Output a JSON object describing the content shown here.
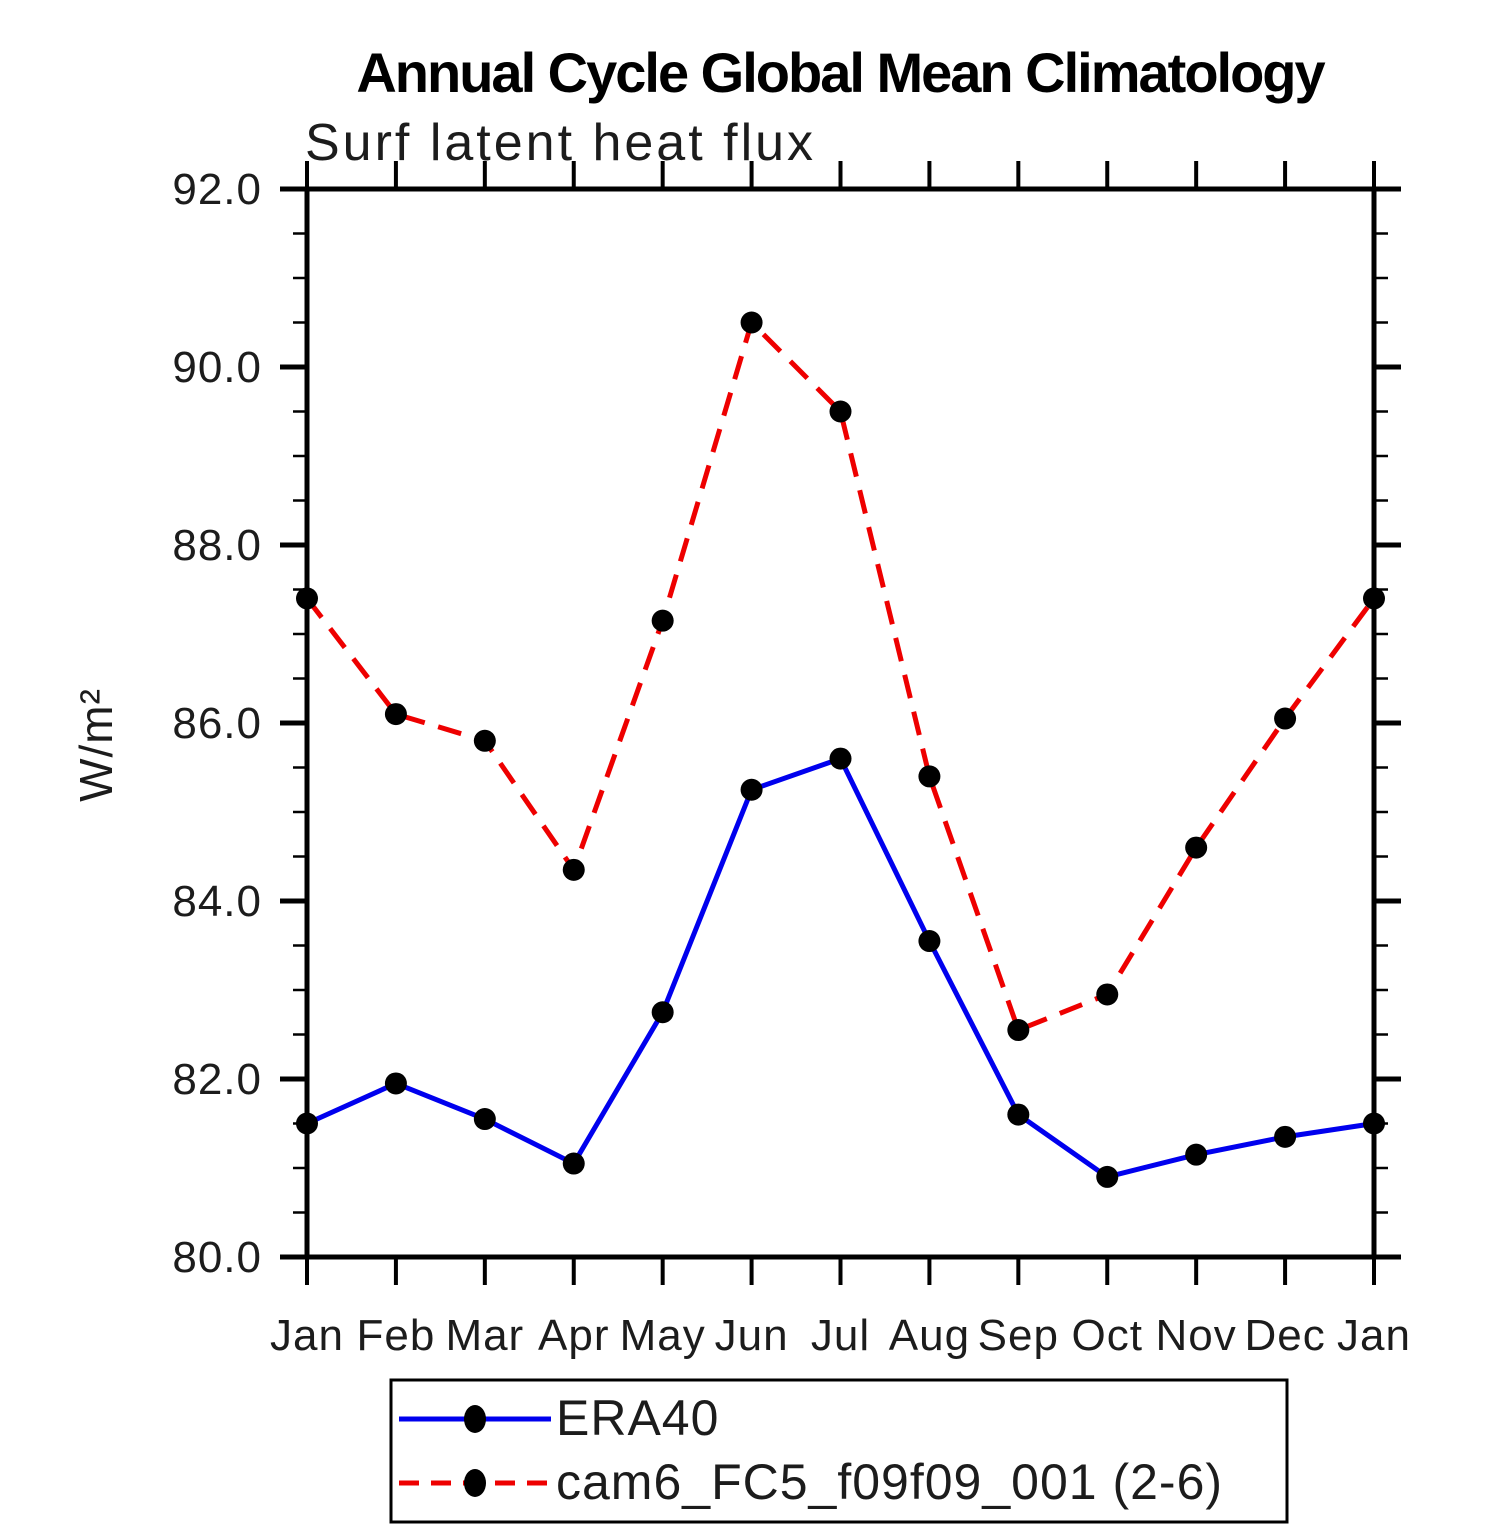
{
  "chart_data": {
    "type": "line",
    "title": "Annual Cycle Global Mean Climatology",
    "subtitle": "Surf latent heat flux",
    "ylabel": "W/m²",
    "xlabel": "",
    "categories": [
      "Jan",
      "Feb",
      "Mar",
      "Apr",
      "May",
      "Jun",
      "Jul",
      "Aug",
      "Sep",
      "Oct",
      "Nov",
      "Dec",
      "Jan"
    ],
    "ylim": [
      80.0,
      92.0
    ],
    "yticks": {
      "values": [
        80.0,
        82.0,
        84.0,
        86.0,
        88.0,
        90.0,
        92.0
      ],
      "labels": [
        "80.0",
        "82.0",
        "84.0",
        "86.0",
        "88.0",
        "90.0",
        "92.0"
      ],
      "minor_step": 0.5
    },
    "grid": false,
    "legend_position": "bottom",
    "series": [
      {
        "name": "ERA40",
        "color": "#0000ee",
        "line_style": "solid",
        "marker": "circle",
        "marker_color": "#000000",
        "values": [
          81.5,
          81.95,
          81.55,
          81.05,
          82.75,
          85.25,
          85.6,
          83.55,
          81.6,
          80.9,
          81.15,
          81.35,
          81.5
        ]
      },
      {
        "name": "cam6_FC5_f09f09_001 (2-6)",
        "color": "#ee0000",
        "line_style": "dashed",
        "marker": "circle",
        "marker_color": "#000000",
        "values": [
          87.4,
          86.1,
          85.8,
          84.35,
          87.15,
          90.5,
          89.5,
          85.4,
          82.55,
          82.95,
          84.6,
          86.05,
          87.4
        ]
      }
    ]
  }
}
